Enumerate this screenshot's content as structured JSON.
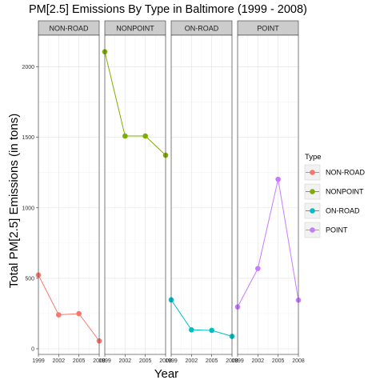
{
  "chart_data": {
    "type": "line",
    "title": "PM[2.5] Emissions By Type in Baltimore (1999 - 2008)",
    "xlabel": "Year",
    "ylabel": "Total PM[2.5] Emissions (in tons)",
    "x": [
      1999,
      2002,
      2005,
      2008
    ],
    "x_tick_labels": [
      "1999",
      "2002",
      "2005",
      "2008"
    ],
    "y_ticks": [
      0,
      500,
      1000,
      1500,
      2000
    ],
    "y_tick_labels": [
      "0",
      "500",
      "1000",
      "1500",
      "2000"
    ],
    "ylim": [
      -40,
      2225
    ],
    "grid": true,
    "legend": {
      "title": "Type",
      "position": "right"
    },
    "facets": [
      {
        "name": "NON-ROAD",
        "color": "#F8766D",
        "values": [
          522.94,
          240.85,
          248.93,
          55.82
        ]
      },
      {
        "name": "NONPOINT",
        "color": "#7CAE00",
        "values": [
          2107.63,
          1509.5,
          1509.5,
          1373.21
        ]
      },
      {
        "name": "ON-ROAD",
        "color": "#00BFC4",
        "values": [
          346.82,
          134.31,
          130.43,
          88.28
        ]
      },
      {
        "name": "POINT",
        "color": "#C77CFF",
        "values": [
          296.8,
          569.26,
          1202.49,
          344.98
        ]
      }
    ]
  }
}
